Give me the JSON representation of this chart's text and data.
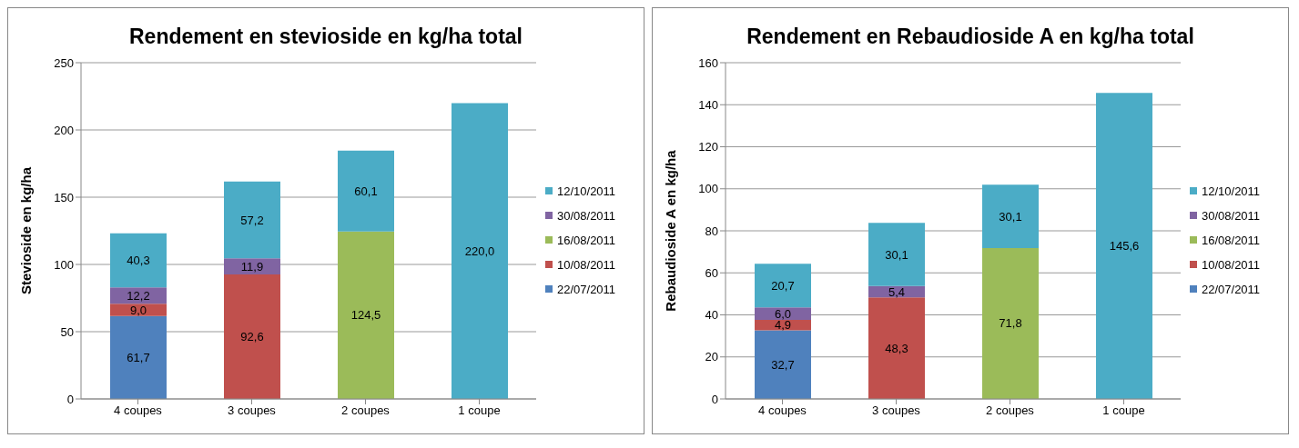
{
  "chart_data": [
    {
      "type": "bar",
      "title": "Rendement en stevioside en kg/ha total",
      "ylabel": "Stevioside en kg/ha",
      "categories": [
        "4 coupes",
        "3 coupes",
        "2 coupes",
        "1 coupe"
      ],
      "stacked": true,
      "ylim": [
        0,
        250
      ],
      "yticks": [
        0,
        50,
        100,
        150,
        200,
        250
      ],
      "grid": "y",
      "legend": "right",
      "series": [
        {
          "name": "22/07/2011",
          "color": "#4f81bd",
          "values": [
            61.7,
            null,
            null,
            null
          ],
          "value_labels": [
            "61,7",
            null,
            null,
            null
          ]
        },
        {
          "name": "10/08/2011",
          "color": "#c0504d",
          "values": [
            9.0,
            92.6,
            null,
            null
          ],
          "value_labels": [
            "9,0",
            "92,6",
            null,
            null
          ]
        },
        {
          "name": "16/08/2011",
          "color": "#9bbb59",
          "values": [
            null,
            null,
            124.5,
            null
          ],
          "value_labels": [
            null,
            null,
            "124,5",
            null
          ]
        },
        {
          "name": "30/08/2011",
          "color": "#8064a2",
          "values": [
            12.2,
            11.9,
            null,
            null
          ],
          "value_labels": [
            "12,2",
            "11,9",
            null,
            null
          ]
        },
        {
          "name": "12/10/2011",
          "color": "#4bacc6",
          "values": [
            40.3,
            57.2,
            60.1,
            220.0
          ],
          "value_labels": [
            "40,3",
            "57,2",
            "60,1",
            "220,0"
          ]
        }
      ]
    },
    {
      "type": "bar",
      "title": "Rendement en Rebaudioside A en kg/ha total",
      "ylabel": "Rebaudioside A en kg/ha",
      "categories": [
        "4 coupes",
        "3 coupes",
        "2 coupes",
        "1 coupe"
      ],
      "stacked": true,
      "ylim": [
        0,
        160
      ],
      "yticks": [
        0,
        20,
        40,
        60,
        80,
        100,
        120,
        140,
        160
      ],
      "grid": "y",
      "legend": "right",
      "series": [
        {
          "name": "22/07/2011",
          "color": "#4f81bd",
          "values": [
            32.7,
            null,
            null,
            null
          ],
          "value_labels": [
            "32,7",
            null,
            null,
            null
          ]
        },
        {
          "name": "10/08/2011",
          "color": "#c0504d",
          "values": [
            4.9,
            48.3,
            null,
            null
          ],
          "value_labels": [
            "4,9",
            "48,3",
            null,
            null
          ]
        },
        {
          "name": "16/08/2011",
          "color": "#9bbb59",
          "values": [
            null,
            null,
            71.8,
            null
          ],
          "value_labels": [
            null,
            null,
            "71,8",
            null
          ]
        },
        {
          "name": "30/08/2011",
          "color": "#8064a2",
          "values": [
            6.0,
            5.4,
            null,
            null
          ],
          "value_labels": [
            "6,0",
            "5,4",
            null,
            null
          ]
        },
        {
          "name": "12/10/2011",
          "color": "#4bacc6",
          "values": [
            20.7,
            30.1,
            30.1,
            145.6
          ],
          "value_labels": [
            "20,7",
            "30,1",
            "30,1",
            "145,6"
          ]
        }
      ]
    }
  ]
}
